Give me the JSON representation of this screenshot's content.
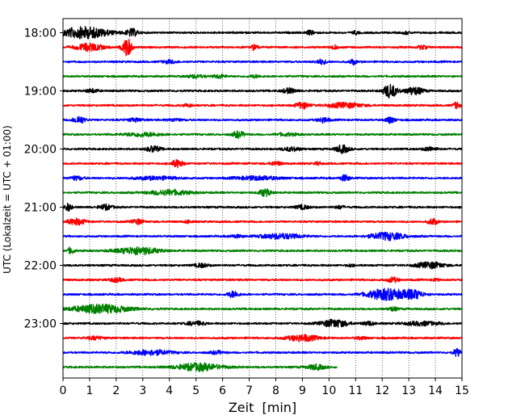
{
  "chart_data": {
    "type": "line",
    "title": "",
    "xlabel": "Zeit  [min]",
    "ylabel": "UTC (Lokalzeit = UTC + 01:00)",
    "xlim": [
      0,
      15
    ],
    "x_ticks": [
      0,
      1,
      2,
      3,
      4,
      5,
      6,
      7,
      8,
      9,
      10,
      11,
      12,
      13,
      14,
      15
    ],
    "y_ticks": [
      "18:00",
      "19:00",
      "20:00",
      "21:00",
      "22:00",
      "23:00"
    ],
    "grid": "vertical dotted lines at each minute",
    "line_minutes": 15,
    "color_cycle": [
      "#000000",
      "#ff0000",
      "#0000ff",
      "#008000"
    ],
    "traces": [
      {
        "time": "18:00",
        "color": "#000000",
        "bursts": [
          [
            0.8,
            2.2,
            0.45
          ],
          [
            2.6,
            0.5,
            0.3
          ],
          [
            9.3,
            0.4,
            0.15
          ],
          [
            11.0,
            0.3,
            0.12
          ],
          [
            12.9,
            0.3,
            0.1
          ]
        ]
      },
      {
        "time": "18:15",
        "color": "#ff0000",
        "bursts": [
          [
            1.0,
            1.2,
            0.3
          ],
          [
            2.4,
            0.4,
            0.8
          ],
          [
            7.2,
            0.3,
            0.25
          ],
          [
            10.2,
            0.3,
            0.15
          ],
          [
            13.5,
            0.4,
            0.15
          ]
        ]
      },
      {
        "time": "18:30",
        "color": "#0000ff",
        "bursts": [
          [
            4.0,
            0.6,
            0.12
          ],
          [
            9.7,
            0.5,
            0.18
          ],
          [
            10.9,
            0.3,
            0.2
          ]
        ]
      },
      {
        "time": "18:45",
        "color": "#008000",
        "bursts": [
          [
            5.0,
            0.8,
            0.12
          ],
          [
            5.9,
            0.5,
            0.15
          ],
          [
            7.2,
            0.5,
            0.1
          ]
        ]
      },
      {
        "time": "19:00",
        "color": "#000000",
        "bursts": [
          [
            1.1,
            0.5,
            0.15
          ],
          [
            8.5,
            0.6,
            0.2
          ],
          [
            12.3,
            0.6,
            0.55
          ],
          [
            13.2,
            0.8,
            0.3
          ]
        ]
      },
      {
        "time": "19:15",
        "color": "#ff0000",
        "bursts": [
          [
            4.7,
            0.4,
            0.12
          ],
          [
            9.0,
            0.6,
            0.25
          ],
          [
            10.6,
            1.5,
            0.2
          ],
          [
            14.8,
            0.3,
            0.25
          ]
        ]
      },
      {
        "time": "19:30",
        "color": "#0000ff",
        "bursts": [
          [
            0.6,
            0.5,
            0.3
          ],
          [
            2.7,
            0.7,
            0.12
          ],
          [
            4.2,
            0.6,
            0.1
          ],
          [
            9.8,
            0.5,
            0.2
          ],
          [
            12.3,
            0.4,
            0.25
          ]
        ]
      },
      {
        "time": "19:45",
        "color": "#008000",
        "bursts": [
          [
            3.0,
            1.6,
            0.15
          ],
          [
            6.6,
            0.5,
            0.25
          ],
          [
            8.4,
            1.0,
            0.1
          ]
        ]
      },
      {
        "time": "20:00",
        "color": "#000000",
        "bursts": [
          [
            3.4,
            0.6,
            0.25
          ],
          [
            8.6,
            0.8,
            0.15
          ],
          [
            10.5,
            0.6,
            0.3
          ],
          [
            13.8,
            0.6,
            0.15
          ]
        ]
      },
      {
        "time": "20:15",
        "color": "#ff0000",
        "bursts": [
          [
            4.3,
            0.5,
            0.3
          ],
          [
            8.0,
            0.5,
            0.15
          ],
          [
            9.6,
            0.3,
            0.12
          ]
        ]
      },
      {
        "time": "20:30",
        "color": "#0000ff",
        "bursts": [
          [
            0.5,
            0.6,
            0.15
          ],
          [
            3.5,
            2.0,
            0.12
          ],
          [
            7.3,
            2.0,
            0.15
          ],
          [
            10.6,
            0.4,
            0.25
          ]
        ]
      },
      {
        "time": "20:45",
        "color": "#008000",
        "bursts": [
          [
            4.0,
            1.8,
            0.2
          ],
          [
            7.6,
            0.5,
            0.3
          ]
        ]
      },
      {
        "time": "21:00",
        "color": "#000000",
        "bursts": [
          [
            0.2,
            0.3,
            0.3
          ],
          [
            1.6,
            0.6,
            0.2
          ],
          [
            9.0,
            0.6,
            0.15
          ],
          [
            10.4,
            0.4,
            0.12
          ]
        ]
      },
      {
        "time": "21:15",
        "color": "#ff0000",
        "bursts": [
          [
            0.5,
            0.8,
            0.25
          ],
          [
            2.8,
            0.5,
            0.2
          ],
          [
            4.7,
            0.3,
            0.12
          ],
          [
            13.9,
            0.4,
            0.25
          ]
        ]
      },
      {
        "time": "21:30",
        "color": "#0000ff",
        "bursts": [
          [
            6.5,
            0.6,
            0.1
          ],
          [
            8.2,
            1.8,
            0.2
          ],
          [
            12.2,
            1.5,
            0.3
          ]
        ]
      },
      {
        "time": "21:45",
        "color": "#008000",
        "bursts": [
          [
            0.3,
            0.3,
            0.25
          ],
          [
            2.8,
            1.8,
            0.3
          ]
        ]
      },
      {
        "time": "22:00",
        "color": "#000000",
        "bursts": [
          [
            5.2,
            0.6,
            0.15
          ],
          [
            10.8,
            0.3,
            0.1
          ],
          [
            13.8,
            1.2,
            0.25
          ]
        ]
      },
      {
        "time": "22:15",
        "color": "#ff0000",
        "bursts": [
          [
            2.0,
            0.6,
            0.15
          ],
          [
            12.4,
            0.5,
            0.2
          ],
          [
            14.0,
            0.3,
            0.1
          ]
        ]
      },
      {
        "time": "22:30",
        "color": "#0000ff",
        "bursts": [
          [
            6.4,
            0.5,
            0.25
          ],
          [
            12.2,
            1.8,
            0.45
          ],
          [
            13.2,
            0.8,
            0.3
          ]
        ]
      },
      {
        "time": "22:45",
        "color": "#008000",
        "bursts": [
          [
            1.4,
            2.5,
            0.35
          ],
          [
            12.4,
            0.4,
            0.15
          ]
        ]
      },
      {
        "time": "23:00",
        "color": "#000000",
        "bursts": [
          [
            5.0,
            0.8,
            0.15
          ],
          [
            10.2,
            1.2,
            0.3
          ],
          [
            11.5,
            0.5,
            0.15
          ],
          [
            13.5,
            1.5,
            0.15
          ]
        ]
      },
      {
        "time": "23:15",
        "color": "#ff0000",
        "bursts": [
          [
            1.2,
            0.8,
            0.12
          ],
          [
            9.0,
            1.4,
            0.25
          ],
          [
            11.2,
            0.5,
            0.1
          ]
        ]
      },
      {
        "time": "23:30",
        "color": "#0000ff",
        "bursts": [
          [
            3.3,
            1.8,
            0.2
          ],
          [
            5.8,
            0.6,
            0.12
          ],
          [
            14.8,
            0.3,
            0.3
          ]
        ]
      },
      {
        "time": "23:45",
        "color": "#008000",
        "bursts": [
          [
            5.1,
            2.0,
            0.3
          ],
          [
            9.5,
            0.8,
            0.2
          ]
        ],
        "end_minute": 10.3
      }
    ]
  }
}
